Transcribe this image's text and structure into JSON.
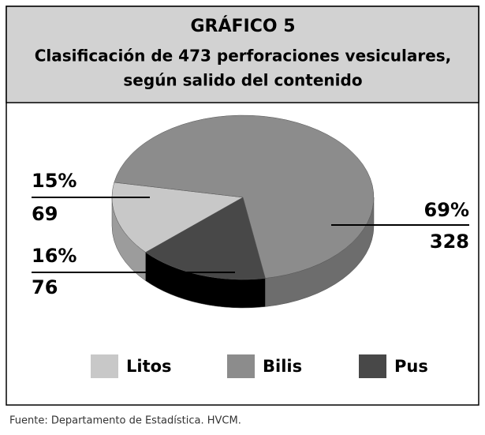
{
  "chart_data": {
    "type": "pie",
    "title": "GRÁFICO 5",
    "subtitle": [
      "Clasificación de 473 perforaciones vesiculares,",
      "según salido del contenido"
    ],
    "categories": [
      "Litos",
      "Bilis",
      "Pus"
    ],
    "values": [
      69,
      328,
      76
    ],
    "percent_labels": [
      "15%",
      "69%",
      "16%"
    ],
    "colors": [
      "#c8c8c8",
      "#8c8c8c",
      "#484848"
    ],
    "legend": "bottom",
    "source": "Fuente: Departamento de Estadística. HVCM."
  }
}
